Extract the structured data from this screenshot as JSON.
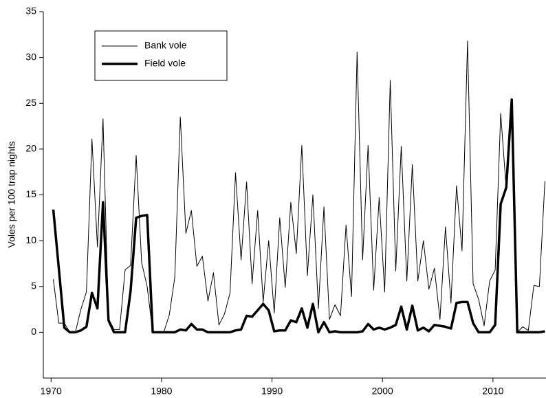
{
  "chart_data": {
    "type": "line",
    "y_label": "Voles per 100 trap nights",
    "x": [
      1970.2,
      1970.7,
      1971.2,
      1971.7,
      1972.2,
      1972.7,
      1973.2,
      1973.7,
      1974.2,
      1974.7,
      1975.2,
      1975.7,
      1976.2,
      1976.7,
      1977.2,
      1977.7,
      1978.2,
      1978.7,
      1979.2,
      1979.7,
      1980.2,
      1980.7,
      1981.2,
      1981.7,
      1982.2,
      1982.7,
      1983.2,
      1983.7,
      1984.2,
      1984.7,
      1985.2,
      1985.7,
      1986.2,
      1986.7,
      1987.2,
      1987.7,
      1988.2,
      1988.7,
      1989.2,
      1989.7,
      1990.2,
      1990.7,
      1991.2,
      1991.7,
      1992.2,
      1992.7,
      1993.2,
      1993.7,
      1994.2,
      1994.7,
      1995.2,
      1995.7,
      1996.2,
      1996.7,
      1997.2,
      1997.7,
      1998.2,
      1998.7,
      1999.2,
      1999.7,
      2000.2,
      2000.7,
      2001.2,
      2001.7,
      2002.2,
      2002.7,
      2003.2,
      2003.7,
      2004.2,
      2004.7,
      2005.2,
      2005.7,
      2006.2,
      2006.7,
      2007.2,
      2007.7,
      2008.2,
      2008.7,
      2009.2,
      2009.7,
      2010.2,
      2010.7,
      2011.2,
      2011.7,
      2012.2,
      2012.7,
      2013.2,
      2013.7,
      2014.2,
      2014.7
    ],
    "series": [
      {
        "name": "Bank vole",
        "color": "#000000",
        "width": 1,
        "values": [
          5.8,
          1.0,
          1.0,
          0,
          0,
          2.5,
          4.4,
          21.1,
          9.3,
          23.3,
          1.5,
          0.3,
          0.3,
          6.8,
          7.3,
          19.3,
          7.6,
          5.0,
          0,
          0,
          0,
          1.9,
          6.0,
          23.5,
          10.8,
          13.3,
          7.2,
          8.3,
          3.4,
          6.5,
          0.8,
          2.0,
          4.3,
          17.4,
          7.9,
          16.4,
          5.3,
          13.3,
          3.3,
          10.0,
          2.1,
          12.5,
          4.9,
          14.2,
          8.6,
          20.4,
          6.2,
          15.0,
          2.6,
          13.7,
          1.4,
          3.0,
          1.8,
          11.7,
          3.9,
          30.6,
          7.9,
          20.4,
          4.6,
          14.7,
          4.4,
          27.5,
          6.7,
          20.3,
          5.6,
          18.3,
          5.6,
          10.0,
          4.7,
          7.0,
          1.4,
          11.5,
          3.2,
          16.0,
          8.9,
          31.8,
          5.3,
          3.6,
          0.7,
          5.6,
          6.8,
          23.9,
          15.6,
          25.3,
          0.0,
          0.6,
          0.2,
          5.1,
          5.0,
          16.5
        ]
      },
      {
        "name": "Field vole",
        "color": "#000000",
        "width": 3.5,
        "values": [
          13.4,
          7.0,
          0.5,
          0,
          0,
          0.2,
          0.6,
          4.3,
          2.6,
          14.2,
          1.3,
          0,
          0,
          0,
          4.5,
          12.5,
          12.7,
          12.8,
          0,
          0,
          0,
          0,
          0,
          0.3,
          0.2,
          0.9,
          0.3,
          0.3,
          0,
          0,
          0,
          0,
          0,
          0.2,
          0.3,
          1.8,
          1.7,
          2.4,
          3.1,
          2.4,
          0.1,
          0.2,
          0.2,
          1.3,
          1.1,
          2.6,
          0.5,
          3.1,
          0,
          1.1,
          0,
          0.1,
          0,
          0,
          0,
          0,
          0.1,
          0.9,
          0.3,
          0.5,
          0.3,
          0.5,
          0.8,
          2.8,
          0.3,
          2.9,
          0.2,
          0.5,
          0.1,
          0.8,
          0.7,
          0.6,
          0.4,
          3.2,
          3.3,
          3.3,
          1.0,
          0,
          0,
          0,
          0.8,
          14.0,
          15.8,
          25.4,
          0,
          0,
          0,
          0,
          0,
          0.1
        ]
      }
    ],
    "xlim": [
      1969.3,
      2014.8
    ],
    "xticks": [
      1970,
      1980,
      1990,
      2000,
      2010
    ],
    "ylim": [
      -5,
      35
    ],
    "yticks": [
      0,
      5,
      10,
      15,
      20,
      25,
      30,
      35
    ],
    "legend": "upper left"
  }
}
